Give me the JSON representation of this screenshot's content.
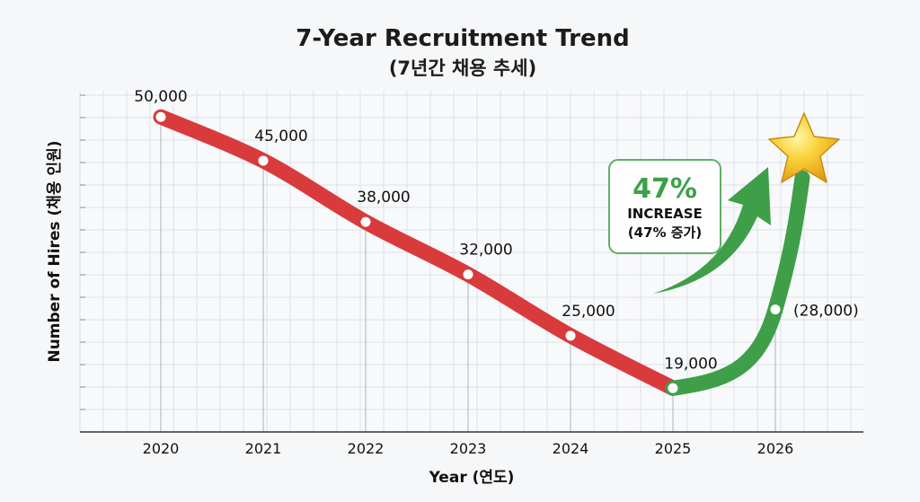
{
  "chart_data": {
    "type": "line",
    "title": "7-Year Recruitment Trend",
    "subtitle": "(7년간 채용 추세)",
    "xlabel": "Year (연도)",
    "ylabel": "Number of Hires (채용 인원)",
    "categories": [
      "2020",
      "2021",
      "2022",
      "2023",
      "2024",
      "2025",
      "2026"
    ],
    "series": [
      {
        "values": [
          50000,
          45000,
          38000,
          32000,
          25000,
          19000,
          null
        ],
        "color": "#d93a3c"
      },
      {
        "values": [
          null,
          null,
          null,
          null,
          null,
          19000,
          28000
        ],
        "color": "#3e9f48"
      }
    ],
    "data_labels": [
      "50,000",
      "45,000",
      "38,000",
      "32,000",
      "25,000",
      "19,000",
      "(28,000)"
    ],
    "ylim": [
      14000,
      53000
    ],
    "grid": true,
    "legend": "none",
    "callout": {
      "headline": "47%",
      "line1": "INCREASE",
      "line2": "(47% 증가)"
    },
    "marker_icon": "star-icon"
  }
}
